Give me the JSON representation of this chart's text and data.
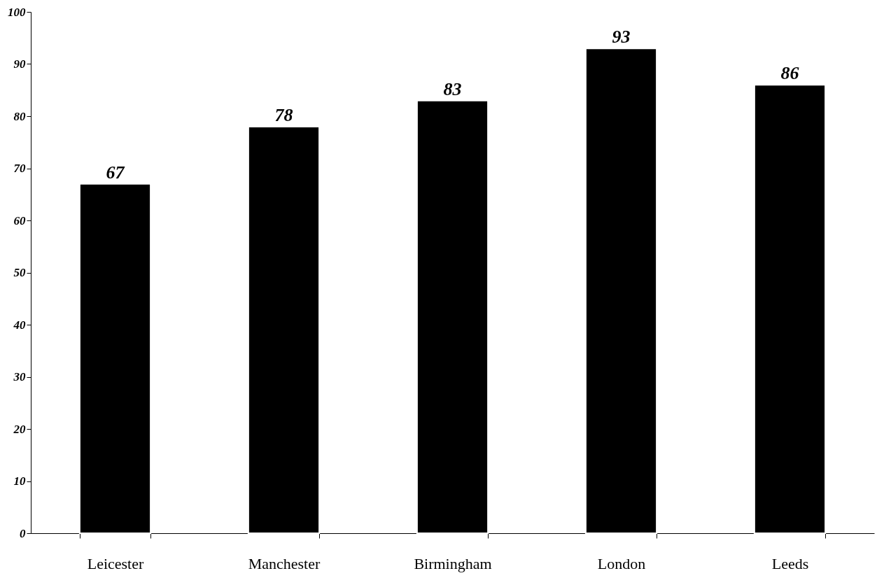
{
  "chart_data": {
    "type": "bar",
    "categories": [
      "Leicester",
      "Manchester",
      "Birmingham",
      "London",
      "Leeds"
    ],
    "values": [
      67,
      78,
      83,
      93,
      86
    ],
    "color": "#000000",
    "ylim": [
      0,
      100
    ],
    "yticks": [
      0,
      10,
      20,
      30,
      40,
      50,
      60,
      70,
      80,
      90,
      100
    ],
    "grid": false,
    "data_labels": true
  }
}
